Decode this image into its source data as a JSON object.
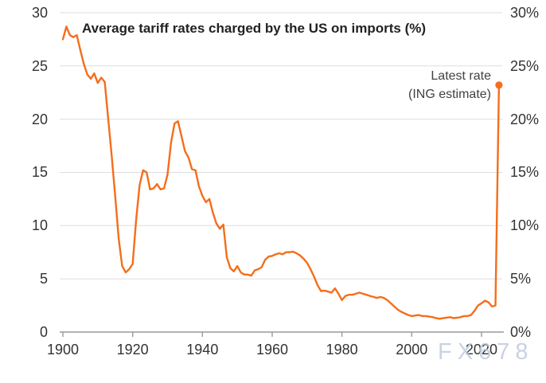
{
  "title": "Average tariff rates charged by the US on imports (%)",
  "annotation": {
    "line1": "Latest rate",
    "line2": "(ING estimate)"
  },
  "watermark": "FX678",
  "colors": {
    "line": "#F46E1B",
    "grid": "#DDDDDD",
    "axis": "#9A9A9A",
    "tick_text": "#333333",
    "title_text": "#222222",
    "annotation_text": "#414141",
    "watermark_text": "#BFCBDF"
  },
  "y_axis_left_labels": [
    "30",
    "25",
    "20",
    "15",
    "10",
    "5",
    "0"
  ],
  "y_axis_right_labels": [
    "30%",
    "25%",
    "20%",
    "15%",
    "10%",
    "5%",
    "0%"
  ],
  "x_axis_labels": [
    "1900",
    "1920",
    "1940",
    "1960",
    "1980",
    "2000",
    "2020"
  ],
  "chart_data": {
    "type": "line",
    "title": "Average tariff rates charged by the US on imports (%)",
    "xlabel": "",
    "ylabel": "",
    "ylim": [
      0,
      30
    ],
    "xlim": [
      1899,
      2026
    ],
    "grid": true,
    "y_ticks_percent": [
      0,
      5,
      10,
      15,
      20,
      25,
      30
    ],
    "x_ticks": [
      1900,
      1920,
      1940,
      1960,
      1980,
      2000,
      2020
    ],
    "x": [
      1900,
      1901,
      1902,
      1903,
      1904,
      1905,
      1906,
      1907,
      1908,
      1909,
      1910,
      1911,
      1912,
      1913,
      1914,
      1915,
      1916,
      1917,
      1918,
      1919,
      1920,
      1921,
      1922,
      1923,
      1924,
      1925,
      1926,
      1927,
      1928,
      1929,
      1930,
      1931,
      1932,
      1933,
      1934,
      1935,
      1936,
      1937,
      1938,
      1939,
      1940,
      1941,
      1942,
      1943,
      1944,
      1945,
      1946,
      1947,
      1948,
      1949,
      1950,
      1951,
      1952,
      1953,
      1954,
      1955,
      1956,
      1957,
      1958,
      1959,
      1960,
      1961,
      1962,
      1963,
      1964,
      1965,
      1966,
      1967,
      1968,
      1969,
      1970,
      1971,
      1972,
      1973,
      1974,
      1975,
      1976,
      1977,
      1978,
      1979,
      1980,
      1981,
      1982,
      1983,
      1984,
      1985,
      1986,
      1987,
      1988,
      1989,
      1990,
      1991,
      1992,
      1993,
      1994,
      1995,
      1996,
      1997,
      1998,
      1999,
      2000,
      2001,
      2002,
      2003,
      2004,
      2005,
      2006,
      2007,
      2008,
      2009,
      2010,
      2011,
      2012,
      2013,
      2014,
      2015,
      2016,
      2017,
      2018,
      2019,
      2020,
      2021,
      2022,
      2023,
      2024,
      2025
    ],
    "values": [
      27.5,
      28.7,
      27.9,
      27.7,
      27.9,
      26.5,
      25.2,
      24.2,
      23.8,
      24.3,
      23.4,
      23.9,
      23.5,
      20.0,
      16.5,
      12.8,
      8.8,
      6.2,
      5.6,
      5.9,
      6.4,
      10.5,
      13.8,
      15.2,
      15.0,
      13.4,
      13.5,
      13.9,
      13.4,
      13.5,
      14.8,
      17.8,
      19.6,
      19.8,
      18.4,
      17.0,
      16.4,
      15.3,
      15.2,
      13.7,
      12.8,
      12.2,
      12.5,
      11.2,
      10.2,
      9.7,
      10.1,
      7.0,
      6.0,
      5.7,
      6.2,
      5.6,
      5.4,
      5.4,
      5.3,
      5.8,
      5.9,
      6.1,
      6.8,
      7.1,
      7.15,
      7.3,
      7.4,
      7.3,
      7.5,
      7.5,
      7.55,
      7.4,
      7.2,
      6.9,
      6.5,
      5.9,
      5.2,
      4.4,
      3.85,
      3.9,
      3.8,
      3.7,
      4.1,
      3.6,
      3.0,
      3.4,
      3.5,
      3.5,
      3.6,
      3.7,
      3.6,
      3.5,
      3.4,
      3.3,
      3.2,
      3.3,
      3.2,
      3.0,
      2.7,
      2.4,
      2.1,
      1.9,
      1.75,
      1.6,
      1.5,
      1.55,
      1.6,
      1.5,
      1.5,
      1.45,
      1.4,
      1.3,
      1.25,
      1.3,
      1.35,
      1.4,
      1.3,
      1.35,
      1.4,
      1.5,
      1.5,
      1.6,
      2.0,
      2.5,
      2.7,
      2.95,
      2.8,
      2.4,
      2.5,
      23.2
    ],
    "latest_point": {
      "year": 2025,
      "value": 23.2,
      "label": "Latest rate (ING estimate)"
    },
    "legend": "none"
  }
}
